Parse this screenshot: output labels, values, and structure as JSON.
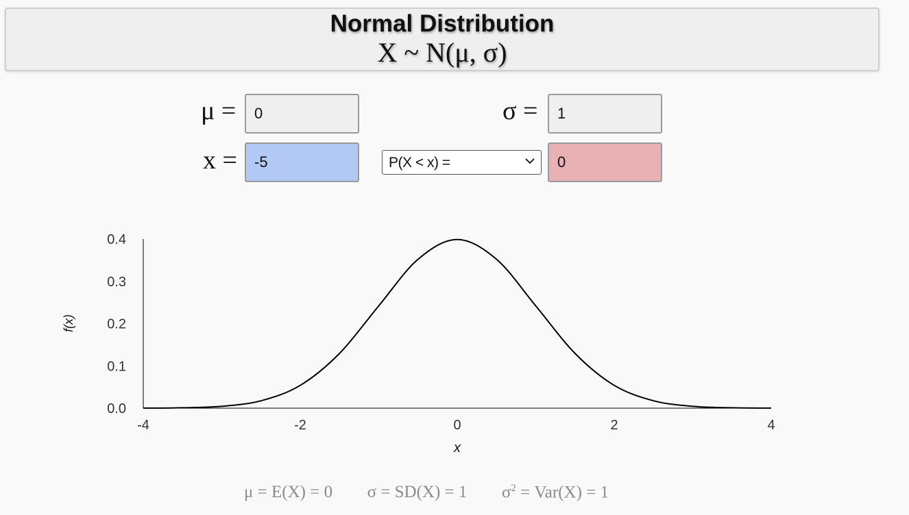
{
  "header": {
    "title": "Normal Distribution",
    "subtitle": "X ~ N(μ, σ)"
  },
  "params": {
    "mu_label": "μ =",
    "mu_value": "0",
    "sigma_label": "σ =",
    "sigma_value": "1",
    "x_label": "x =",
    "x_value": "-5",
    "prob_select": "P(X < x) =",
    "prob_value": "0"
  },
  "chart_data": {
    "type": "line",
    "series": [
      {
        "x": [
          -4,
          -3.5,
          -3,
          -2.5,
          -2,
          -1.5,
          -1,
          -0.5,
          0,
          0.5,
          1,
          1.5,
          2,
          2.5,
          3,
          3.5,
          4
        ],
        "values": [
          0.0001,
          0.0009,
          0.0044,
          0.0175,
          0.054,
          0.1295,
          0.242,
          0.3521,
          0.3989,
          0.3521,
          0.242,
          0.1295,
          0.054,
          0.0175,
          0.0044,
          0.0009,
          0.0001
        ]
      }
    ],
    "xlabel": "x",
    "ylabel": "f(x)",
    "xlim": [
      -4,
      4
    ],
    "ylim": [
      0,
      0.4
    ],
    "xticks": [
      "-4",
      "-2",
      "0",
      "2",
      "4"
    ],
    "yticks": [
      "0.0",
      "0.1",
      "0.2",
      "0.3",
      "0.4"
    ],
    "grid": false,
    "line_color": "#000000"
  },
  "stats": {
    "mean": "μ = E(X) = 0",
    "sd": "σ = SD(X) = 1",
    "var_prefix": "σ",
    "var_exp": "2",
    "var_suffix": " = Var(X) = 1"
  }
}
